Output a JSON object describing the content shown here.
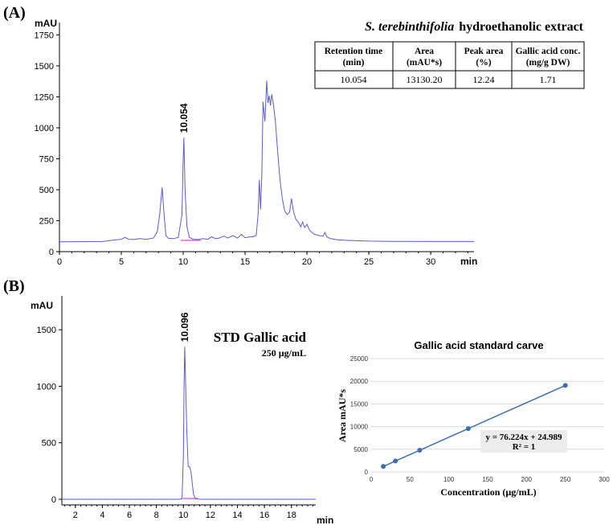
{
  "panels": {
    "a_label": "(A)",
    "b_label": "(B)"
  },
  "chart_data": [
    {
      "type": "line",
      "panel": "A",
      "ylabel": "mAU",
      "xlabel": "min",
      "xlim": [
        0,
        33.5
      ],
      "ylim": [
        0,
        1850
      ],
      "x_ticks": [
        "0",
        "5",
        "10",
        "15",
        "20",
        "25",
        "30"
      ],
      "y_ticks": [
        "0",
        "250",
        "500",
        "750",
        "1000",
        "1250",
        "1500",
        "1750"
      ],
      "peak_label": "10.054",
      "line_color": "#5b5bd6",
      "series": [
        {
          "x": [
            0,
            3.5,
            4.0,
            4.5,
            5.0,
            5.3,
            5.6,
            6.0,
            6.5,
            7.0,
            7.6,
            7.9,
            8.1,
            8.3,
            8.45,
            8.6,
            8.8,
            9.2,
            9.6,
            9.9,
            10.0,
            10.054,
            10.15,
            10.3,
            10.5,
            10.8,
            11.2,
            11.6,
            12.0,
            12.3,
            12.6,
            12.9,
            13.3,
            13.6,
            14.0,
            14.4,
            14.7,
            15.0,
            15.3,
            15.6,
            15.9,
            16.05,
            16.15,
            16.25,
            16.35,
            16.45,
            16.6,
            16.75,
            16.85,
            16.95,
            17.05,
            17.15,
            17.3,
            17.45,
            17.6,
            17.8,
            18.0,
            18.2,
            18.4,
            18.6,
            18.75,
            18.9,
            19.1,
            19.3,
            19.5,
            19.65,
            19.8,
            20.0,
            20.2,
            20.35,
            20.6,
            21.0,
            21.3,
            21.45,
            21.6,
            21.9,
            22.5,
            23.5,
            25.0,
            27.0,
            30.0,
            33.5
          ],
          "y": [
            80,
            82,
            88,
            95,
            100,
            115,
            100,
            98,
            105,
            100,
            110,
            160,
            300,
            520,
            300,
            130,
            108,
            105,
            115,
            300,
            750,
            920,
            500,
            200,
            115,
            100,
            98,
            105,
            100,
            120,
            105,
            110,
            125,
            110,
            130,
            110,
            140,
            112,
            118,
            120,
            130,
            300,
            580,
            340,
            600,
            1210,
            1050,
            1380,
            1200,
            1260,
            1180,
            1270,
            1180,
            1050,
            850,
            600,
            430,
            330,
            300,
            320,
            430,
            330,
            260,
            240,
            200,
            240,
            195,
            220,
            175,
            160,
            140,
            130,
            125,
            155,
            120,
            105,
            95,
            90,
            85,
            83,
            82,
            82
          ]
        }
      ]
    },
    {
      "type": "line",
      "panel": "B",
      "ylabel": "mAU",
      "xlabel": "min",
      "xlim": [
        1,
        19.8
      ],
      "ylim": [
        -50,
        1800
      ],
      "x_ticks": [
        "2",
        "4",
        "6",
        "8",
        "10",
        "12",
        "14",
        "16",
        "18"
      ],
      "y_ticks": [
        "0",
        "500",
        "1000",
        "1500"
      ],
      "title": "STD Gallic acid",
      "subtitle": "250 µg/mL",
      "peak_label": "10.096",
      "line_color": "#5b5bd6",
      "series": [
        {
          "x": [
            1,
            9.7,
            9.9,
            10.0,
            10.05,
            10.096,
            10.15,
            10.25,
            10.35,
            10.45,
            10.55,
            10.65,
            10.75,
            10.9,
            11.2,
            19.8
          ],
          "y": [
            0,
            0,
            5,
            400,
            1000,
            1350,
            1100,
            600,
            290,
            290,
            250,
            150,
            40,
            5,
            0,
            0
          ]
        }
      ]
    },
    {
      "type": "scatter",
      "panel": "B-inset",
      "title": "Gallic acid standard carve",
      "xlabel": "Concentration (µg/mL)",
      "ylabel": "Area mAU*s",
      "xlim": [
        0,
        300
      ],
      "ylim": [
        0,
        25000
      ],
      "x_ticks": [
        "0",
        "50",
        "100",
        "150",
        "200",
        "250",
        "300"
      ],
      "y_ticks": [
        "0",
        "5000",
        "10000",
        "15000",
        "20000",
        "25000"
      ],
      "grid": true,
      "equation": "y = 76.224x + 24.989",
      "r_squared": "R² = 1",
      "point_color": "#3c6eb4",
      "series": [
        {
          "x": [
            15.625,
            31.25,
            62.5,
            125,
            250
          ],
          "y": [
            1216,
            2407,
            4789,
            9553,
            19081
          ]
        }
      ]
    }
  ],
  "table": {
    "extract_title_italic": "S. terebinthifolia",
    "extract_title_rest": "hydroethanolic extract",
    "headers": [
      [
        "Retention time",
        "(min)"
      ],
      [
        "Area",
        "(mAU*s)"
      ],
      [
        "Peak area",
        "(%)"
      ],
      [
        "Gallic acid conc.",
        "(mg/g DW)"
      ]
    ],
    "row": [
      "10.054",
      "13130.20",
      "12.24",
      "1.71"
    ]
  }
}
